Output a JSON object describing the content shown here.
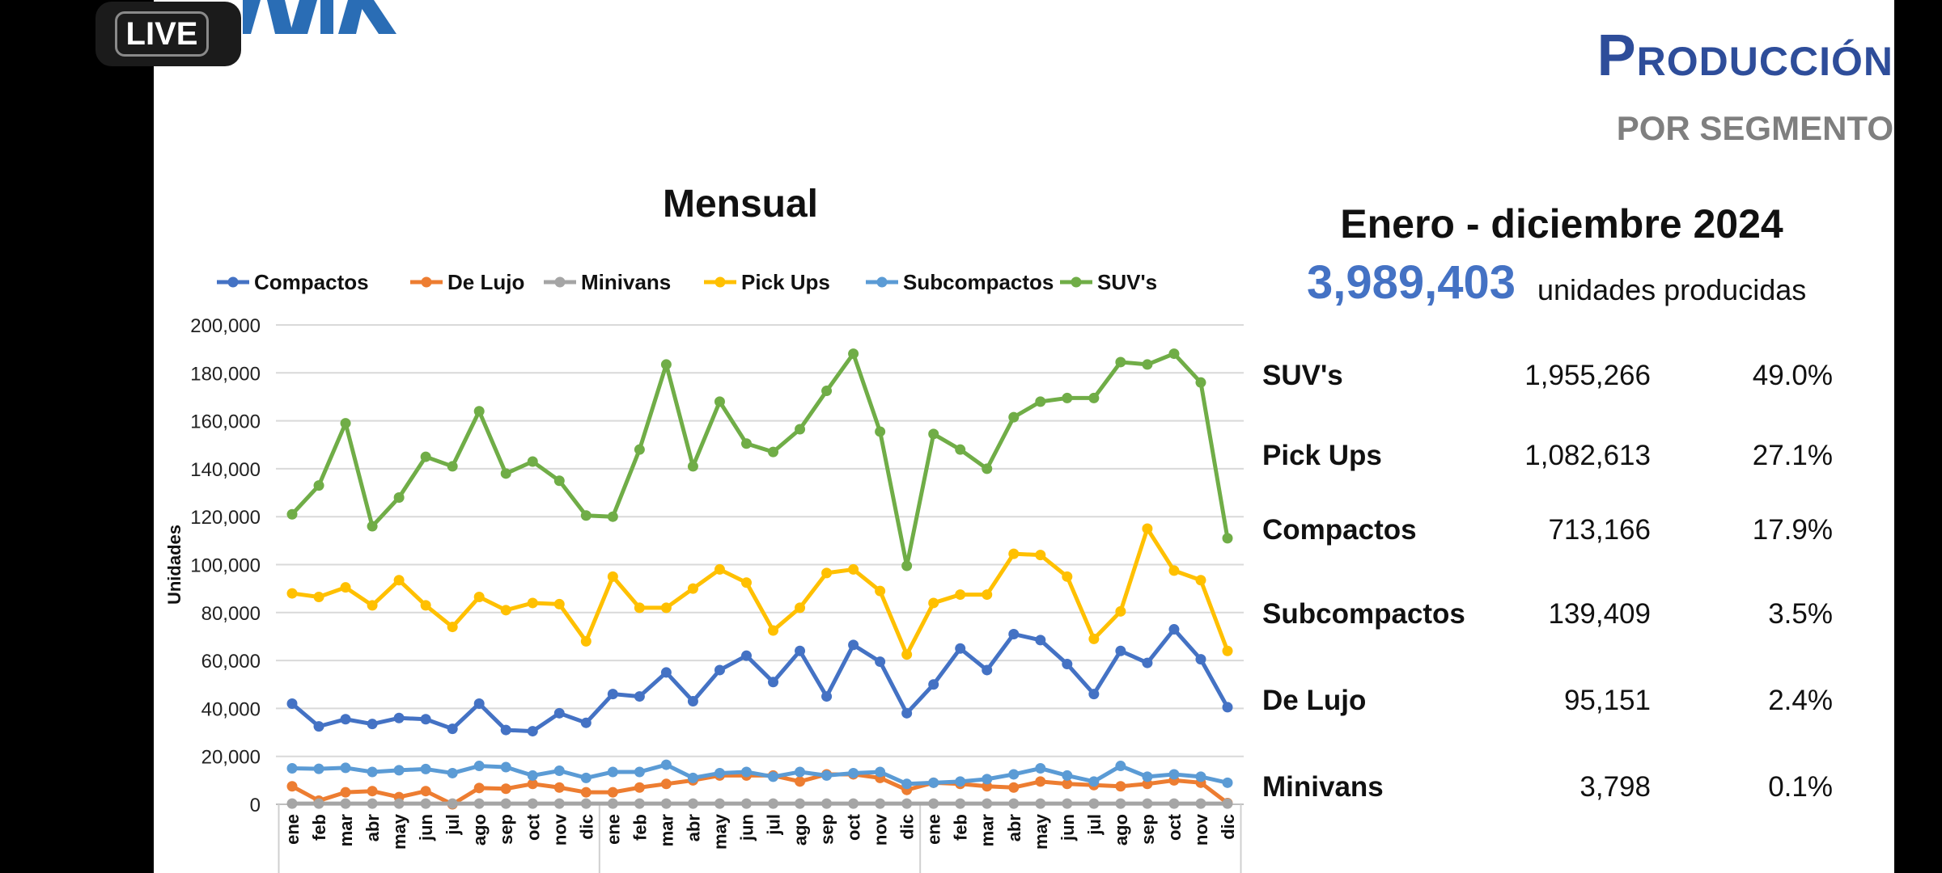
{
  "badge": {
    "live": "LIVE"
  },
  "logo": {
    "text": "AMIA"
  },
  "header": {
    "title": "Producción",
    "subtitle": "POR SEGMENTO"
  },
  "summary": {
    "period": "Enero - diciembre 2024",
    "total": "3,989,403",
    "total_label": "unidades producidas",
    "rows": [
      {
        "label": "SUV's",
        "value": "1,955,266",
        "pct": "49.0%"
      },
      {
        "label": "Pick Ups",
        "value": "1,082,613",
        "pct": "27.1%"
      },
      {
        "label": "Compactos",
        "value": "713,166",
        "pct": "17.9%"
      },
      {
        "label": "Subcompactos",
        "value": "139,409",
        "pct": "3.5%"
      },
      {
        "label": "De Lujo",
        "value": "95,151",
        "pct": "2.4%"
      },
      {
        "label": "Minivans",
        "value": "3,798",
        "pct": "0.1%"
      }
    ]
  },
  "chart_data": {
    "type": "line",
    "title": "Mensual",
    "xlabel": "",
    "ylabel": "Unidades",
    "ylim": [
      0,
      200000
    ],
    "yticks": [
      "0",
      "20,000",
      "40,000",
      "60,000",
      "80,000",
      "100,000",
      "120,000",
      "140,000",
      "160,000",
      "180,000",
      "200,000"
    ],
    "grid": true,
    "legend": "top",
    "categories": [
      "ene",
      "feb",
      "mar",
      "abr",
      "may",
      "jun",
      "jul",
      "ago",
      "sep",
      "oct",
      "nov",
      "dic",
      "ene",
      "feb",
      "mar",
      "abr",
      "may",
      "jun",
      "jul",
      "ago",
      "sep",
      "oct",
      "nov",
      "dic",
      "ene",
      "feb",
      "mar",
      "abr",
      "may",
      "jun",
      "jul",
      "ago",
      "sep",
      "oct",
      "nov",
      "dic"
    ],
    "series": [
      {
        "name": "Compactos",
        "color": "#4472c4",
        "values": [
          42000,
          32500,
          35500,
          33500,
          36000,
          35500,
          31500,
          42000,
          31000,
          30500,
          38000,
          34000,
          46000,
          45000,
          55000,
          43000,
          56000,
          62000,
          51000,
          64000,
          45000,
          66500,
          59500,
          38000,
          50000,
          65000,
          56000,
          71000,
          68500,
          58500,
          46000,
          64000,
          59000,
          73000,
          60500,
          40500
        ]
      },
      {
        "name": "De Lujo",
        "color": "#ed7d31",
        "values": [
          7500,
          1500,
          5000,
          5500,
          3000,
          5500,
          0,
          6800,
          6500,
          8500,
          7000,
          5000,
          5000,
          7000,
          8500,
          10000,
          12000,
          12000,
          12000,
          9500,
          12500,
          12500,
          11000,
          6000,
          9000,
          8500,
          7500,
          7000,
          9500,
          8500,
          8000,
          7500,
          8500,
          10000,
          9000,
          500
        ]
      },
      {
        "name": "Minivans",
        "color": "#a5a5a5",
        "values": [
          300,
          300,
          300,
          300,
          300,
          300,
          300,
          300,
          300,
          300,
          300,
          300,
          300,
          300,
          300,
          300,
          300,
          300,
          300,
          300,
          300,
          300,
          300,
          300,
          300,
          300,
          300,
          300,
          300,
          300,
          300,
          300,
          300,
          300,
          300,
          300
        ]
      },
      {
        "name": "Pick Ups",
        "color": "#ffc000",
        "values": [
          88000,
          86500,
          90500,
          83000,
          93500,
          83000,
          74000,
          86500,
          81000,
          84000,
          83500,
          68000,
          95000,
          82000,
          82000,
          90000,
          98000,
          92500,
          72500,
          82000,
          96500,
          98000,
          89000,
          62500,
          84000,
          87500,
          87500,
          104500,
          104000,
          95000,
          69000,
          80500,
          115000,
          97500,
          93500,
          64000
        ]
      },
      {
        "name": "Subcompactos",
        "color": "#5b9bd5",
        "values": [
          15000,
          14800,
          15200,
          13500,
          14200,
          14700,
          13000,
          16000,
          15500,
          12000,
          14000,
          11000,
          13500,
          13500,
          16500,
          11000,
          13000,
          13500,
          11500,
          13500,
          12000,
          13000,
          13500,
          8500,
          9000,
          9500,
          10500,
          12500,
          15000,
          12000,
          9500,
          16000,
          11500,
          12500,
          11500,
          9000
        ]
      },
      {
        "name": "SUV's",
        "color": "#70ad47",
        "values": [
          121000,
          133000,
          159000,
          116000,
          128000,
          145000,
          141000,
          164000,
          138000,
          143000,
          135000,
          120500,
          120000,
          148000,
          183500,
          141000,
          168000,
          150500,
          147000,
          156500,
          172500,
          188000,
          155500,
          99500,
          154500,
          148000,
          140000,
          161500,
          168000,
          169500,
          169500,
          184500,
          183500,
          188000,
          176000,
          111000
        ]
      }
    ]
  }
}
